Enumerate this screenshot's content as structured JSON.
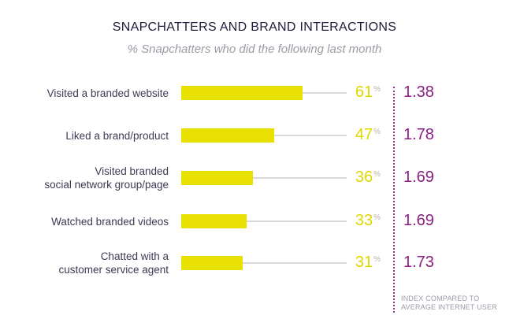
{
  "title": "SNAPCHATTERS AND BRAND INTERACTIONS",
  "subtitle": "% Snapchatters who did the following last month",
  "index_note": [
    "INDEX COMPARED TO",
    "AVERAGE INTERNET USER"
  ],
  "colors": {
    "bar": "#e8e000",
    "index": "#8a1e80",
    "track": "#d9d9d9"
  },
  "chart_data": {
    "type": "bar",
    "orientation": "horizontal",
    "title": "SNAPCHATTERS AND BRAND INTERACTIONS",
    "subtitle": "% Snapchatters who did the following last month",
    "categories": [
      [
        "Visited a branded website"
      ],
      [
        "Liked a brand/product"
      ],
      [
        "Visited branded",
        "social network group/page"
      ],
      [
        "Watched branded videos"
      ],
      [
        "Chatted with a",
        "customer service agent"
      ]
    ],
    "values": [
      61,
      47,
      36,
      33,
      31
    ],
    "value_labels": [
      "61",
      "47",
      "36",
      "33",
      "31"
    ],
    "value_unit": "%",
    "xlim": [
      0,
      100
    ],
    "index_values": [
      "1.38",
      "1.78",
      "1.69",
      "1.69",
      "1.73"
    ],
    "index_label": "INDEX COMPARED TO AVERAGE INTERNET USER"
  }
}
